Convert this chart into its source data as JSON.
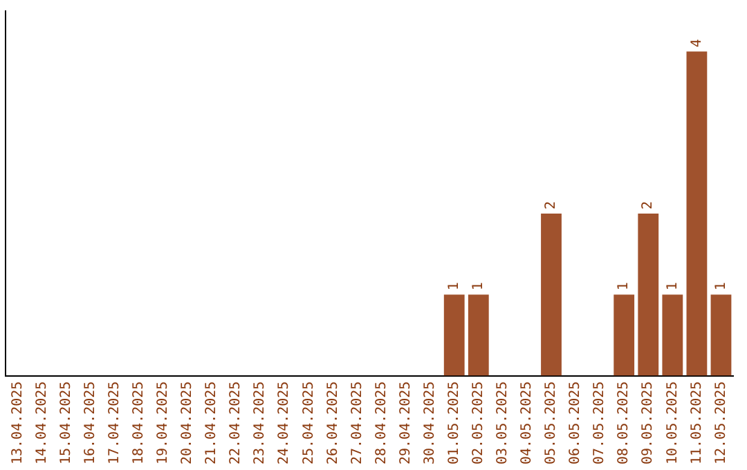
{
  "chart_data": {
    "type": "bar",
    "categories": [
      "13.04.2025",
      "14.04.2025",
      "15.04.2025",
      "16.04.2025",
      "17.04.2025",
      "18.04.2025",
      "19.04.2025",
      "20.04.2025",
      "21.04.2025",
      "22.04.2025",
      "23.04.2025",
      "24.04.2025",
      "25.04.2025",
      "26.04.2025",
      "27.04.2025",
      "28.04.2025",
      "29.04.2025",
      "30.04.2025",
      "01.05.2025",
      "02.05.2025",
      "03.05.2025",
      "04.05.2025",
      "05.05.2025",
      "06.05.2025",
      "07.05.2025",
      "08.05.2025",
      "09.05.2025",
      "10.05.2025",
      "11.05.2025",
      "12.05.2025"
    ],
    "values": [
      null,
      null,
      null,
      null,
      null,
      null,
      null,
      null,
      null,
      null,
      null,
      null,
      null,
      null,
      null,
      null,
      null,
      null,
      1,
      1,
      null,
      null,
      2,
      null,
      null,
      1,
      2,
      1,
      4,
      1
    ],
    "data_labels": true,
    "color": "#a0522d",
    "grid": false,
    "tick_labels": "x"
  }
}
